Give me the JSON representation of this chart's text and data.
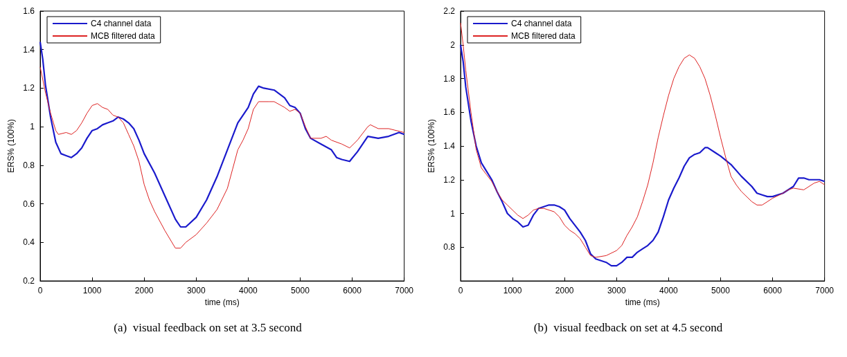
{
  "chart_data": [
    {
      "type": "line",
      "xlabel": "time (ms)",
      "ylabel": "ERS% (100%)",
      "xlim": [
        0,
        7000
      ],
      "ylim": [
        0.2,
        1.6
      ],
      "xticks": [
        0,
        1000,
        2000,
        3000,
        4000,
        5000,
        6000,
        7000
      ],
      "yticks": [
        0.2,
        0.4,
        0.6,
        0.8,
        1,
        1.2,
        1.4,
        1.6
      ],
      "grid": false,
      "legend": "top left",
      "annotations": [
        "(a)  visual feedback on set at 3.5 second"
      ],
      "series": [
        {
          "name": "C4 channel data",
          "color": "#1a1acc",
          "x": [
            0,
            50,
            100,
            200,
            300,
            400,
            500,
            600,
            700,
            800,
            900,
            1000,
            1100,
            1200,
            1300,
            1400,
            1500,
            1600,
            1700,
            1800,
            1900,
            2000,
            2200,
            2400,
            2600,
            2700,
            2800,
            3000,
            3200,
            3400,
            3600,
            3800,
            4000,
            4100,
            4200,
            4300,
            4500,
            4700,
            4800,
            4900,
            5000,
            5100,
            5200,
            5400,
            5600,
            5700,
            5800,
            5950,
            6100,
            6300,
            6500,
            6700,
            6900,
            7000
          ],
          "values": [
            1.44,
            1.35,
            1.22,
            1.05,
            0.92,
            0.86,
            0.85,
            0.84,
            0.86,
            0.89,
            0.94,
            0.98,
            0.99,
            1.01,
            1.02,
            1.03,
            1.05,
            1.04,
            1.02,
            0.99,
            0.93,
            0.86,
            0.76,
            0.64,
            0.52,
            0.48,
            0.48,
            0.53,
            0.62,
            0.74,
            0.88,
            1.02,
            1.1,
            1.17,
            1.21,
            1.2,
            1.19,
            1.15,
            1.11,
            1.1,
            1.07,
            0.99,
            0.94,
            0.91,
            0.88,
            0.84,
            0.83,
            0.82,
            0.87,
            0.95,
            0.94,
            0.95,
            0.97,
            0.96
          ]
        },
        {
          "name": "MCB filtered data",
          "color": "#dd2222",
          "x": [
            0,
            100,
            200,
            300,
            350,
            500,
            600,
            700,
            800,
            900,
            1000,
            1100,
            1200,
            1300,
            1400,
            1500,
            1600,
            1700,
            1800,
            1900,
            2000,
            2100,
            2200,
            2400,
            2600,
            2700,
            2800,
            3000,
            3200,
            3400,
            3600,
            3700,
            3800,
            3900,
            4000,
            4100,
            4200,
            4400,
            4500,
            4700,
            4800,
            4900,
            5000,
            5100,
            5200,
            5400,
            5500,
            5600,
            5800,
            5950,
            6100,
            6300,
            6350,
            6500,
            6700,
            7000
          ],
          "values": [
            1.31,
            1.18,
            1.07,
            0.98,
            0.96,
            0.97,
            0.96,
            0.98,
            1.02,
            1.07,
            1.11,
            1.12,
            1.1,
            1.09,
            1.06,
            1.05,
            1.02,
            0.96,
            0.9,
            0.82,
            0.7,
            0.62,
            0.56,
            0.46,
            0.37,
            0.37,
            0.4,
            0.44,
            0.5,
            0.57,
            0.68,
            0.78,
            0.88,
            0.93,
            0.99,
            1.09,
            1.13,
            1.13,
            1.13,
            1.1,
            1.08,
            1.09,
            1.07,
            1,
            0.94,
            0.94,
            0.95,
            0.93,
            0.91,
            0.89,
            0.93,
            1,
            1.01,
            0.99,
            0.99,
            0.97
          ]
        }
      ]
    },
    {
      "type": "line",
      "xlabel": "time (ms)",
      "ylabel": "ERS% (100%)",
      "xlim": [
        0,
        7000
      ],
      "ylim": [
        0.6,
        2.2
      ],
      "xticks": [
        0,
        1000,
        2000,
        3000,
        4000,
        5000,
        6000,
        7000
      ],
      "yticks": [
        0.8,
        1,
        1.2,
        1.4,
        1.6,
        1.8,
        2,
        2.2
      ],
      "grid": false,
      "legend": "top left",
      "annotations": [
        "(b)  visual feedback on set at 4.5 second"
      ],
      "series": [
        {
          "name": "C4 channel data",
          "color": "#1a1acc",
          "x": [
            0,
            50,
            100,
            200,
            300,
            400,
            500,
            600,
            700,
            800,
            900,
            1000,
            1100,
            1200,
            1300,
            1400,
            1500,
            1600,
            1700,
            1800,
            1900,
            2000,
            2100,
            2200,
            2300,
            2400,
            2500,
            2600,
            2700,
            2800,
            2900,
            3000,
            3100,
            3200,
            3300,
            3400,
            3500,
            3600,
            3700,
            3800,
            3900,
            4000,
            4100,
            4200,
            4300,
            4400,
            4500,
            4600,
            4700,
            4750,
            4900,
            5000,
            5200,
            5400,
            5600,
            5700,
            5800,
            5900,
            6000,
            6200,
            6400,
            6500,
            6600,
            6700,
            6900,
            7000
          ],
          "values": [
            2,
            1.9,
            1.75,
            1.55,
            1.4,
            1.3,
            1.25,
            1.2,
            1.13,
            1.07,
            1,
            0.97,
            0.95,
            0.92,
            0.93,
            0.99,
            1.03,
            1.04,
            1.05,
            1.05,
            1.04,
            1.02,
            0.97,
            0.93,
            0.89,
            0.84,
            0.76,
            0.73,
            0.72,
            0.71,
            0.69,
            0.69,
            0.71,
            0.74,
            0.74,
            0.77,
            0.79,
            0.81,
            0.84,
            0.89,
            0.98,
            1.08,
            1.15,
            1.21,
            1.28,
            1.33,
            1.35,
            1.36,
            1.39,
            1.39,
            1.36,
            1.34,
            1.29,
            1.22,
            1.16,
            1.12,
            1.11,
            1.1,
            1.1,
            1.12,
            1.16,
            1.21,
            1.21,
            1.2,
            1.2,
            1.19
          ]
        },
        {
          "name": "MCB filtered data",
          "color": "#dd2222",
          "x": [
            0,
            50,
            100,
            200,
            300,
            400,
            500,
            600,
            700,
            800,
            900,
            1000,
            1100,
            1200,
            1300,
            1400,
            1500,
            1600,
            1800,
            1900,
            2000,
            2100,
            2200,
            2300,
            2400,
            2500,
            2600,
            2800,
            3000,
            3100,
            3200,
            3300,
            3400,
            3500,
            3600,
            3700,
            3800,
            3900,
            4000,
            4100,
            4200,
            4300,
            4400,
            4500,
            4600,
            4700,
            4800,
            4900,
            5000,
            5100,
            5200,
            5300,
            5400,
            5500,
            5600,
            5700,
            5800,
            5900,
            6000,
            6200,
            6300,
            6400,
            6600,
            6800,
            6900,
            7000
          ],
          "values": [
            2.13,
            2,
            1.85,
            1.6,
            1.38,
            1.27,
            1.23,
            1.19,
            1.13,
            1.08,
            1.05,
            1.02,
            0.99,
            0.97,
            0.99,
            1.02,
            1.03,
            1.03,
            1.01,
            0.98,
            0.93,
            0.9,
            0.88,
            0.85,
            0.8,
            0.75,
            0.74,
            0.75,
            0.78,
            0.81,
            0.87,
            0.92,
            0.98,
            1.07,
            1.17,
            1.3,
            1.45,
            1.58,
            1.7,
            1.8,
            1.87,
            1.92,
            1.94,
            1.92,
            1.87,
            1.8,
            1.7,
            1.58,
            1.45,
            1.33,
            1.22,
            1.17,
            1.13,
            1.1,
            1.07,
            1.05,
            1.05,
            1.07,
            1.09,
            1.12,
            1.14,
            1.15,
            1.14,
            1.18,
            1.19,
            1.17
          ]
        }
      ]
    }
  ]
}
